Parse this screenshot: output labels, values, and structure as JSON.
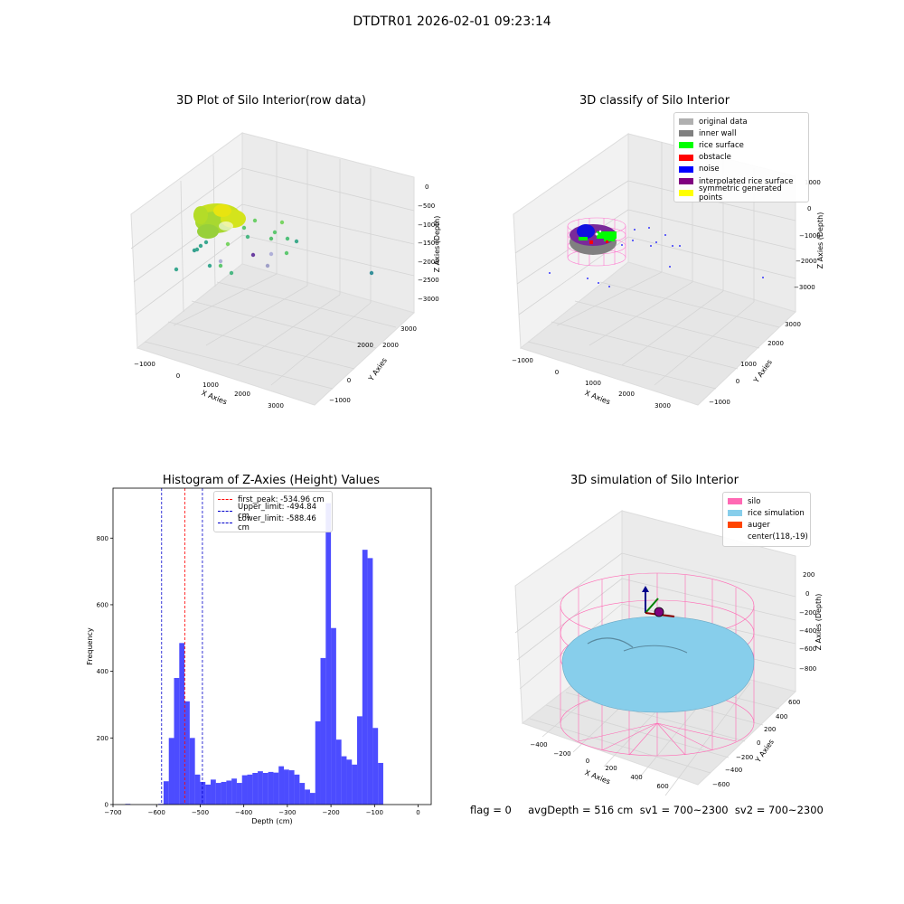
{
  "figure": {
    "title": "DTDTR01 2026-02-01 09:23:14",
    "status_text": "flag = 0     avgDepth = 516 cm  sv1 = 700~2300  sv2 = 700~2300"
  },
  "panels": {
    "raw": {
      "title": "3D Plot of Silo Interior(row data)",
      "xlabel": "X Axies",
      "ylabel": "Y Axies",
      "zlabel": "Z Axies (Depth)",
      "xticks": [
        "−1000",
        "0",
        "1000",
        "2000",
        "3000"
      ],
      "yticks": [
        "−1000",
        "0",
        "1000",
        "2000",
        "3000"
      ],
      "zticks": [
        "0",
        "−500",
        "−1000",
        "−1500",
        "−2000",
        "−2500",
        "−3000"
      ]
    },
    "classify": {
      "title": "3D classify of Silo Interior",
      "xlabel": "X Axies",
      "ylabel": "Y Axies",
      "zlabel": "Z Axies (Depth)",
      "xticks": [
        "−1000",
        "0",
        "1000",
        "2000",
        "3000"
      ],
      "yticks": [
        "−1000",
        "0",
        "1000",
        "2000",
        "3000"
      ],
      "zticks": [
        "1000",
        "0",
        "−1000",
        "−2000",
        "−3000"
      ],
      "legend": [
        {
          "label": "original data",
          "color": "#b0b0b0"
        },
        {
          "label": "inner wall",
          "color": "#808080"
        },
        {
          "label": "rice surface",
          "color": "#00ff00"
        },
        {
          "label": "obstacle",
          "color": "#ff0000"
        },
        {
          "label": "noise",
          "color": "#0000ff"
        },
        {
          "label": "interpolated rice surface",
          "color": "#800080"
        },
        {
          "label": "symmetric generated points",
          "color": "#ffff00"
        }
      ]
    },
    "simulation": {
      "title": "3D simulation of Silo Interior",
      "xlabel": "X Axies",
      "ylabel": "Y Axies",
      "zlabel": "Z Axies (Depth)",
      "xticks": [
        "−400",
        "−200",
        "0",
        "200",
        "400",
        "600"
      ],
      "yticks": [
        "600",
        "400",
        "200",
        "0",
        "−200",
        "−400",
        "−600"
      ],
      "zticks": [
        "200",
        "0",
        "−200",
        "−400",
        "−600",
        "−800"
      ],
      "legend": [
        {
          "label": "silo",
          "color": "#ff69b4"
        },
        {
          "label": "rice simulation",
          "color": "#87ceeb"
        },
        {
          "label": "auger",
          "color": "#ff4500"
        },
        {
          "label": "center(118,-19)",
          "color": ""
        }
      ]
    }
  },
  "chart_data": {
    "type": "bar",
    "title": "Histogram of Z-Axies (Height) Values",
    "xlabel": "Depth (cm)",
    "ylabel": "Frequency",
    "xlim": [
      -700,
      30
    ],
    "ylim": [
      0,
      950
    ],
    "xticks": [
      -700,
      -600,
      -500,
      -400,
      -300,
      -200,
      -100,
      0
    ],
    "yticks": [
      0,
      200,
      400,
      600,
      800
    ],
    "bin_start": -596,
    "bin_width": 12,
    "outliers": [
      {
        "x": -666,
        "value": 2
      }
    ],
    "values": [
      2,
      70,
      200,
      380,
      485,
      310,
      200,
      90,
      68,
      60,
      75,
      65,
      68,
      72,
      78,
      65,
      88,
      90,
      95,
      100,
      95,
      98,
      96,
      115,
      105,
      103,
      90,
      65,
      45,
      35,
      250,
      440,
      905,
      530,
      195,
      145,
      135,
      120,
      265,
      765,
      740,
      230,
      125
    ],
    "color": "#0000ff",
    "lines": [
      {
        "name": "first_peak: -534.96 cm",
        "x": -534.96,
        "color": "#ff0000"
      },
      {
        "name": "Upper_limit: -494.84 cm",
        "x": -494.84,
        "color": "#0000cc"
      },
      {
        "name": "Lower_limit: -588.46 cm",
        "x": -588.46,
        "color": "#0000cc"
      }
    ]
  }
}
